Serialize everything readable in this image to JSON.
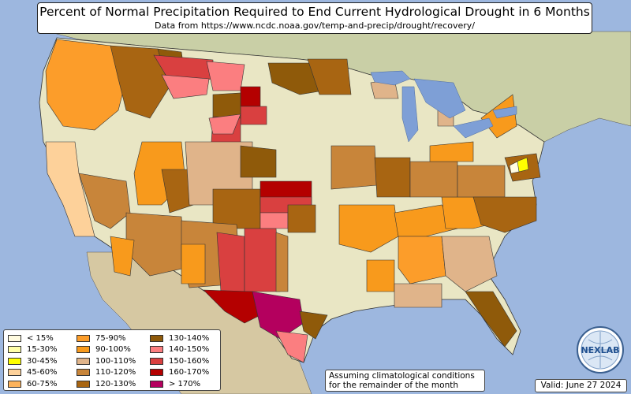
{
  "title": "Percent of Normal Precipitation Required to End Current Hydrological Drought in 6 Months",
  "subtitle": "Data from https://www.ncdc.noaa.gov/temp-and-precip/drought/recovery/",
  "legend": {
    "columns": [
      [
        {
          "label": "< 15%",
          "color": "#fffbe0"
        },
        {
          "label": "15-30%",
          "color": "#ffffa8"
        },
        {
          "label": "30-45%",
          "color": "#ffff00"
        },
        {
          "label": "45-60%",
          "color": "#fdd19a"
        },
        {
          "label": "60-75%",
          "color": "#fdb35c"
        }
      ],
      [
        {
          "label": "75-90%",
          "color": "#fc9d2a"
        },
        {
          "label": "90-100%",
          "color": "#f89a1c"
        },
        {
          "label": "100-110%",
          "color": "#e0b48a"
        },
        {
          "label": "110-120%",
          "color": "#c8853a"
        },
        {
          "label": "120-130%",
          "color": "#a86512"
        }
      ],
      [
        {
          "label": "130-140%",
          "color": "#8f5a0a"
        },
        {
          "label": "140-150%",
          "color": "#fb7e80"
        },
        {
          "label": "150-160%",
          "color": "#d94040"
        },
        {
          "label": "160-170%",
          "color": "#b40000"
        },
        {
          "label": "> 170%",
          "color": "#b4005e"
        }
      ]
    ]
  },
  "note": {
    "line1": "Assuming climatological conditions",
    "line2": "for the remainder of the month"
  },
  "logo_text": "NEXLAB",
  "valid_date": "Valid: June 27 2024",
  "colors": {
    "ocean": "#9db7df",
    "land": "#e9e6c4",
    "canada": "#c9cfa6",
    "mexico": "#d6c8a2",
    "lakes": "#7e9fd6"
  }
}
